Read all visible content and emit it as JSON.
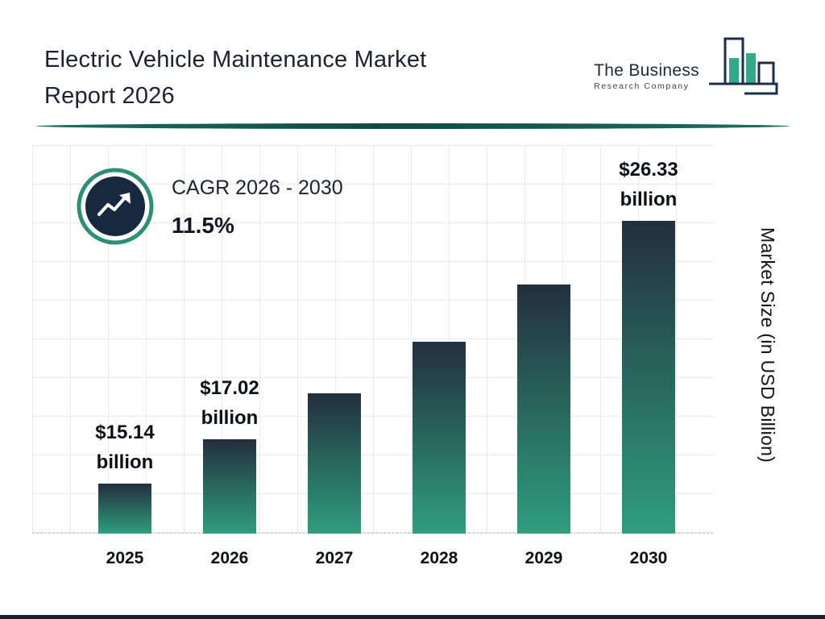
{
  "header": {
    "title_line1": "Electric Vehicle Maintenance Market",
    "title_line2": "Report 2026",
    "logo": {
      "name": "The Business",
      "subtitle": "Research Company"
    }
  },
  "cagr": {
    "label": "CAGR 2026 - 2030",
    "value": "11.5%"
  },
  "chart_data": {
    "type": "bar",
    "title": "Electric Vehicle Maintenance Market Report 2026",
    "ylabel": "Market Size (in USD Billion)",
    "xlabel": "",
    "categories": [
      "2025",
      "2026",
      "2027",
      "2028",
      "2029",
      "2030"
    ],
    "values": [
      15.14,
      17.02,
      18.98,
      21.16,
      23.6,
      26.33
    ],
    "value_labels": [
      {
        "amount": "$15.14",
        "unit": "billion"
      },
      {
        "amount": "$17.02",
        "unit": "billion"
      },
      null,
      null,
      null,
      {
        "amount": "$26.33",
        "unit": "billion"
      }
    ],
    "y_baseline": 13,
    "ylim": [
      13,
      27
    ],
    "grid": true,
    "legend": false,
    "colors": {
      "bar_gradient_top": "#232f3e",
      "bar_gradient_bottom": "#2f9e7d",
      "accent_teal": "#2e8f77",
      "dark_navy": "#16293e"
    }
  }
}
